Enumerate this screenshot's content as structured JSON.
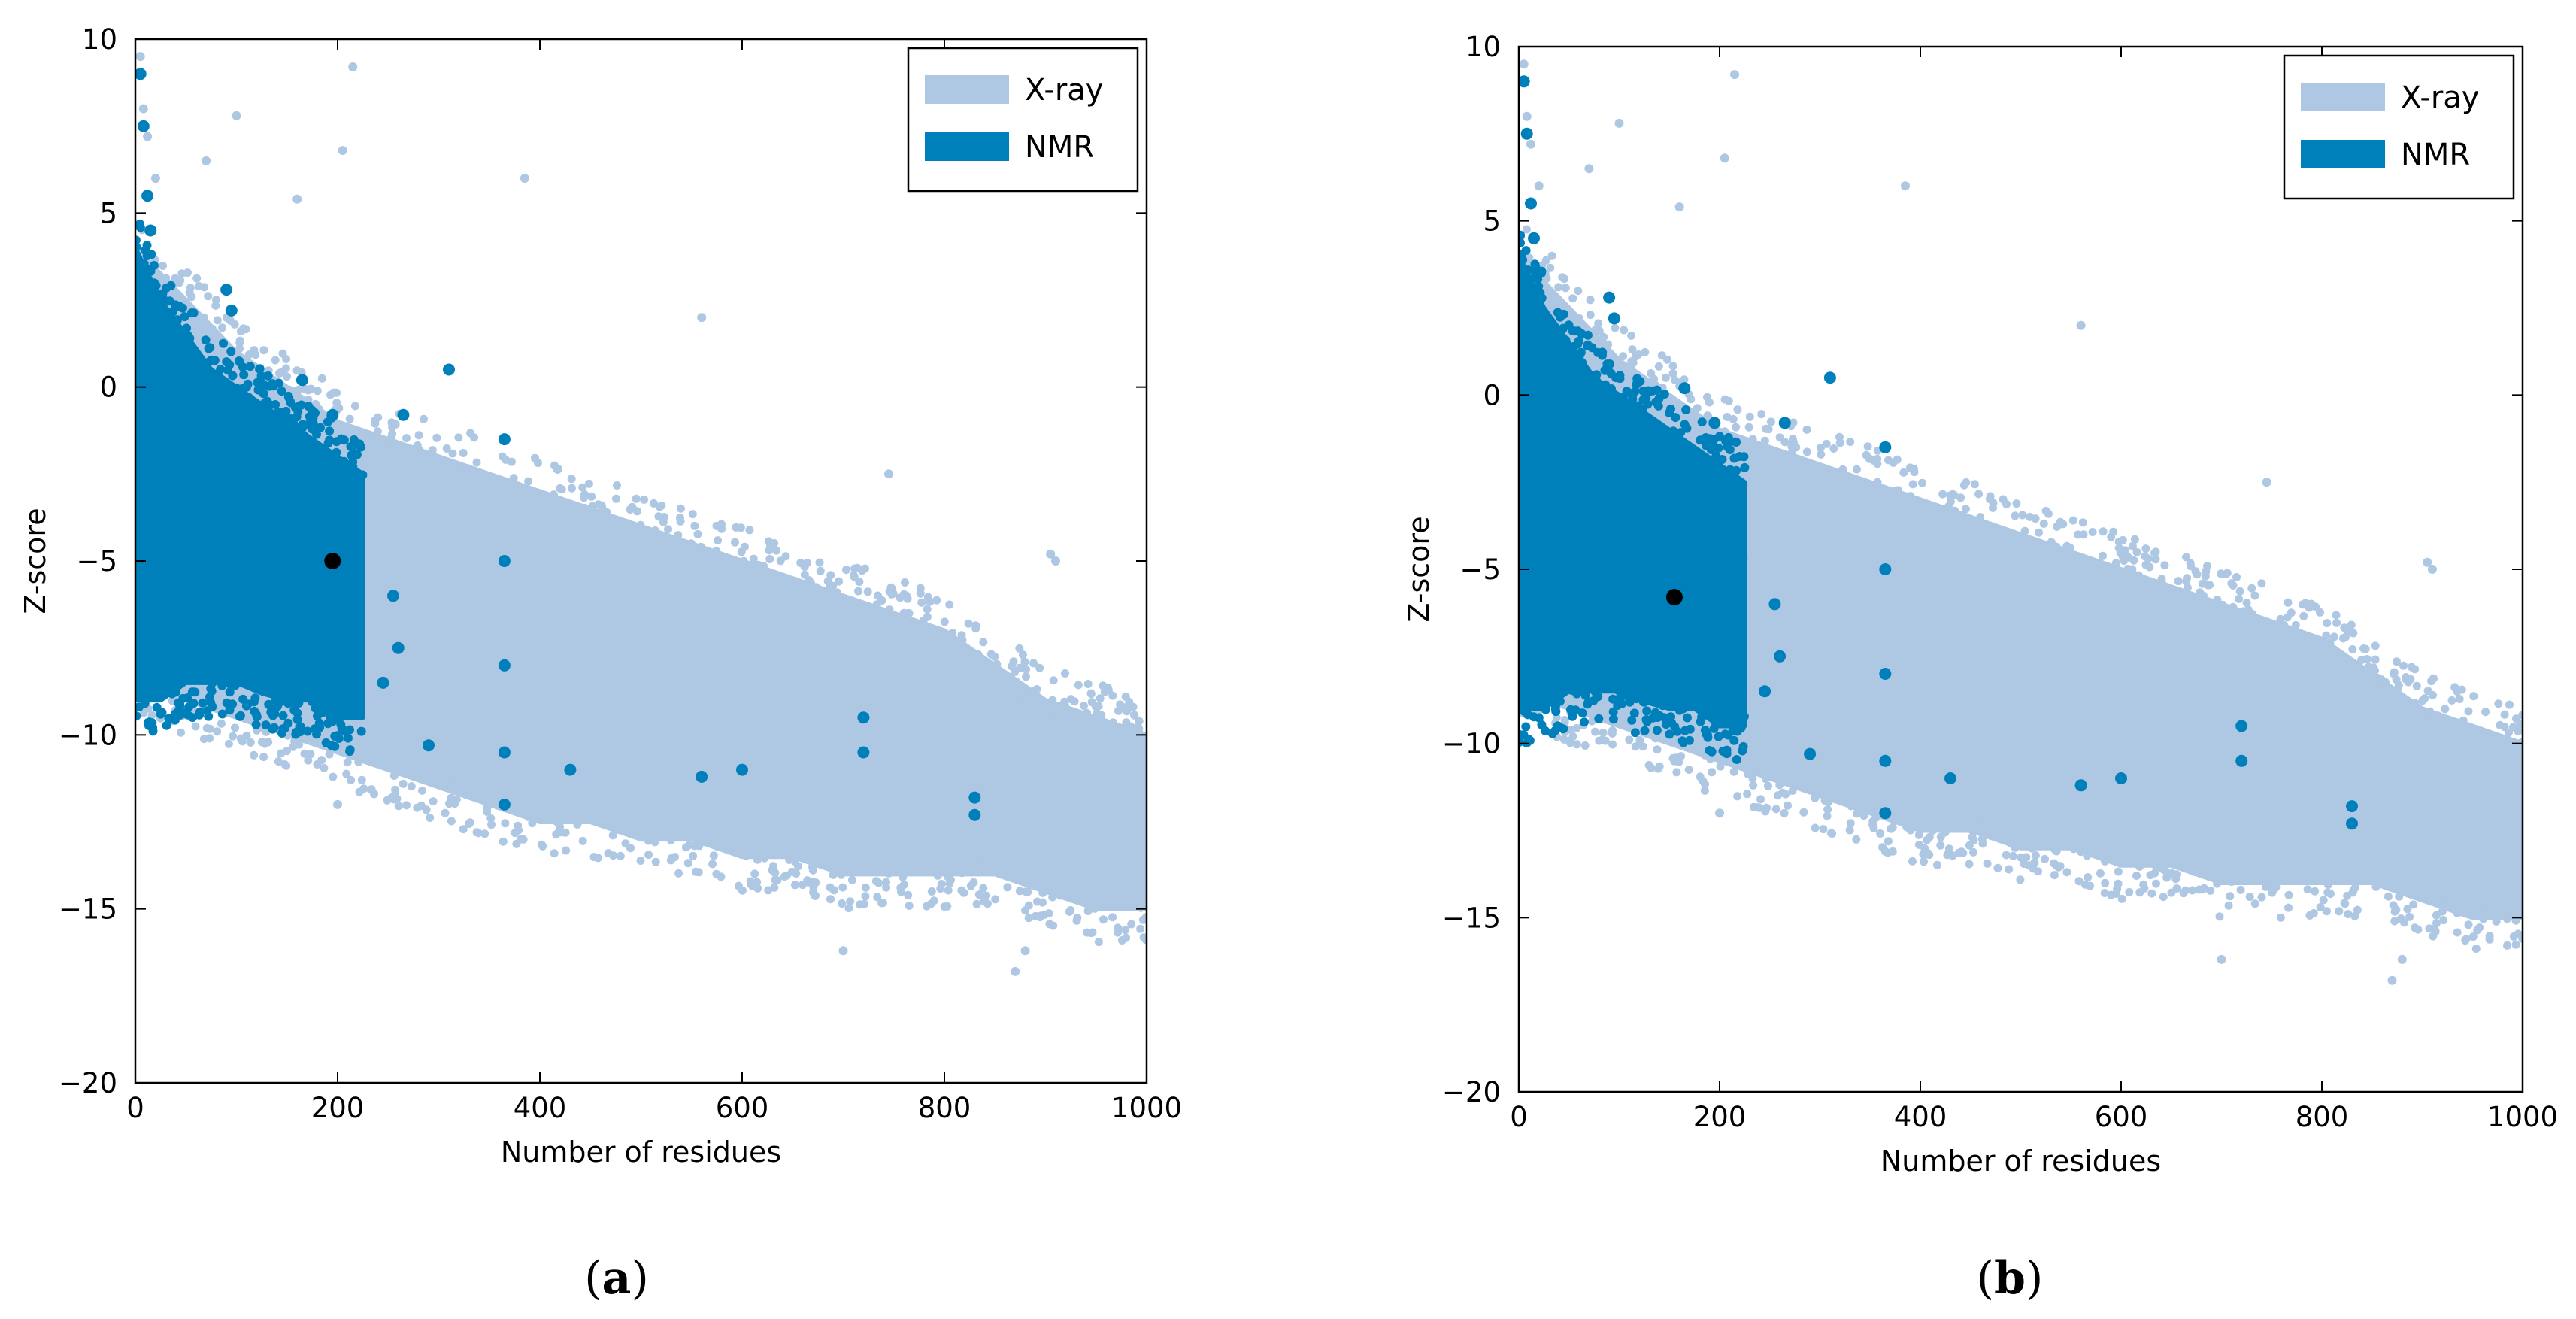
{
  "colors": {
    "xray": "#aec7e3",
    "nmr": "#0080bb",
    "marker": "#000000",
    "axis": "#000000",
    "background": "#ffffff"
  },
  "chart_data": [
    {
      "type": "scatter",
      "panel_label": "a",
      "caption_open": "(",
      "caption_close": ")",
      "xlabel": "Number of residues",
      "ylabel": "Z-score",
      "xlim": [
        0,
        1000
      ],
      "ylim": [
        -20,
        10
      ],
      "xticks": [
        0,
        200,
        400,
        600,
        800,
        1000
      ],
      "yticks": [
        10,
        5,
        0,
        -5,
        -10,
        -15,
        -20
      ],
      "ytick_labels": [
        "10",
        "5",
        "0",
        "−5",
        "−10",
        "−15",
        "−20"
      ],
      "grid": false,
      "legend_position": "top-right",
      "series": [
        {
          "name": "X-ray",
          "color": "#aec7e3",
          "envelope": {
            "x": [
              0,
              50,
              100,
              150,
              200,
              250,
              300,
              350,
              400,
              450,
              500,
              550,
              600,
              650,
              700,
              750,
              800,
              850,
              900,
              950,
              1000
            ],
            "upper": [
              4,
              2.5,
              1.0,
              0.0,
              -1.0,
              -1.5,
              -2.0,
              -2.5,
              -3.0,
              -3.5,
              -4.0,
              -4.5,
              -5.0,
              -5.5,
              -6.0,
              -6.5,
              -7.0,
              -8.0,
              -9.0,
              -9.5,
              -10.0
            ],
            "lower": [
              -8.5,
              -9.0,
              -9.5,
              -10.0,
              -10.5,
              -11.0,
              -11.5,
              -12.0,
              -12.5,
              -12.5,
              -13.0,
              -13.0,
              -13.5,
              -13.5,
              -14.0,
              -14.0,
              -14.0,
              -14.0,
              -14.5,
              -15.0,
              -15.0
            ]
          },
          "outliers": [
            [
              5,
              9.5
            ],
            [
              8,
              8.0
            ],
            [
              12,
              7.2
            ],
            [
              20,
              6.0
            ],
            [
              70,
              6.5
            ],
            [
              100,
              7.8
            ],
            [
              160,
              5.4
            ],
            [
              205,
              6.8
            ],
            [
              215,
              9.2
            ],
            [
              385,
              6.0
            ],
            [
              560,
              2.0
            ],
            [
              745,
              -2.5
            ],
            [
              905,
              -4.8
            ],
            [
              910,
              -5.0
            ],
            [
              700,
              -16.2
            ],
            [
              870,
              -16.8
            ],
            [
              880,
              -16.2
            ],
            [
              990,
              -14.5
            ],
            [
              200,
              -12.0
            ]
          ]
        },
        {
          "name": "NMR",
          "color": "#0080bb",
          "envelope": {
            "x": [
              0,
              25,
              50,
              75,
              100,
              125,
              150,
              175,
              200,
              225
            ],
            "upper": [
              4.0,
              2.5,
              1.5,
              0.5,
              0.0,
              -0.5,
              -1.0,
              -1.5,
              -2.0,
              -2.5
            ],
            "lower": [
              -9.0,
              -9.0,
              -8.5,
              -8.5,
              -8.5,
              -8.8,
              -9.0,
              -9.0,
              -9.5,
              -9.5
            ]
          },
          "outliers": [
            [
              5,
              9.0
            ],
            [
              8,
              7.5
            ],
            [
              12,
              5.5
            ],
            [
              15,
              4.5
            ],
            [
              90,
              2.8
            ],
            [
              95,
              2.2
            ],
            [
              165,
              0.2
            ],
            [
              195,
              -0.8
            ],
            [
              265,
              -0.8
            ],
            [
              310,
              0.5
            ],
            [
              365,
              -1.5
            ],
            [
              365,
              -5.0
            ],
            [
              365,
              -8.0
            ],
            [
              365,
              -10.5
            ],
            [
              365,
              -12.0
            ],
            [
              430,
              -11.0
            ],
            [
              560,
              -11.2
            ],
            [
              600,
              -11.0
            ],
            [
              720,
              -9.5
            ],
            [
              720,
              -10.5
            ],
            [
              830,
              -11.8
            ],
            [
              830,
              -12.3
            ],
            [
              255,
              -6.0
            ],
            [
              260,
              -7.5
            ],
            [
              245,
              -8.5
            ],
            [
              290,
              -10.3
            ]
          ]
        }
      ],
      "highlight_point": {
        "x": 195,
        "y": -5.0
      }
    },
    {
      "type": "scatter",
      "panel_label": "b",
      "caption_open": "(",
      "caption_close": ")",
      "xlabel": "Number of residues",
      "ylabel": "Z-score",
      "xlim": [
        0,
        1000
      ],
      "ylim": [
        -20,
        10
      ],
      "xticks": [
        0,
        200,
        400,
        600,
        800,
        1000
      ],
      "yticks": [
        10,
        5,
        0,
        -5,
        -10,
        -15,
        -20
      ],
      "ytick_labels": [
        "10",
        "5",
        "0",
        "−5",
        "−10",
        "−15",
        "−20"
      ],
      "grid": false,
      "legend_position": "top-right",
      "series": [
        {
          "name": "X-ray",
          "color": "#aec7e3",
          "envelope": {
            "x": [
              0,
              50,
              100,
              150,
              200,
              250,
              300,
              350,
              400,
              450,
              500,
              550,
              600,
              650,
              700,
              750,
              800,
              850,
              900,
              950,
              1000
            ],
            "upper": [
              4,
              2.5,
              1.0,
              0.0,
              -1.0,
              -1.5,
              -2.0,
              -2.5,
              -3.0,
              -3.5,
              -4.0,
              -4.5,
              -5.0,
              -5.5,
              -6.0,
              -6.5,
              -7.0,
              -8.0,
              -9.0,
              -9.5,
              -10.0
            ],
            "lower": [
              -8.5,
              -9.0,
              -9.5,
              -10.0,
              -10.5,
              -11.0,
              -11.5,
              -12.0,
              -12.5,
              -12.5,
              -13.0,
              -13.0,
              -13.5,
              -13.5,
              -14.0,
              -14.0,
              -14.0,
              -14.0,
              -14.5,
              -15.0,
              -15.0
            ]
          },
          "outliers": [
            [
              5,
              9.5
            ],
            [
              8,
              8.0
            ],
            [
              12,
              7.2
            ],
            [
              20,
              6.0
            ],
            [
              70,
              6.5
            ],
            [
              100,
              7.8
            ],
            [
              160,
              5.4
            ],
            [
              205,
              6.8
            ],
            [
              215,
              9.2
            ],
            [
              385,
              6.0
            ],
            [
              560,
              2.0
            ],
            [
              745,
              -2.5
            ],
            [
              905,
              -4.8
            ],
            [
              910,
              -5.0
            ],
            [
              700,
              -16.2
            ],
            [
              870,
              -16.8
            ],
            [
              880,
              -16.2
            ],
            [
              990,
              -14.5
            ],
            [
              200,
              -12.0
            ]
          ]
        },
        {
          "name": "NMR",
          "color": "#0080bb",
          "envelope": {
            "x": [
              0,
              25,
              50,
              75,
              100,
              125,
              150,
              175,
              200,
              225
            ],
            "upper": [
              4.0,
              2.5,
              1.5,
              0.5,
              0.0,
              -0.5,
              -1.0,
              -1.5,
              -2.0,
              -2.5
            ],
            "lower": [
              -9.0,
              -9.0,
              -8.5,
              -8.5,
              -8.5,
              -8.8,
              -9.0,
              -9.0,
              -9.5,
              -9.5
            ]
          },
          "outliers": [
            [
              5,
              9.0
            ],
            [
              8,
              7.5
            ],
            [
              12,
              5.5
            ],
            [
              15,
              4.5
            ],
            [
              90,
              2.8
            ],
            [
              95,
              2.2
            ],
            [
              165,
              0.2
            ],
            [
              195,
              -0.8
            ],
            [
              265,
              -0.8
            ],
            [
              310,
              0.5
            ],
            [
              365,
              -1.5
            ],
            [
              365,
              -5.0
            ],
            [
              365,
              -8.0
            ],
            [
              365,
              -10.5
            ],
            [
              365,
              -12.0
            ],
            [
              430,
              -11.0
            ],
            [
              560,
              -11.2
            ],
            [
              600,
              -11.0
            ],
            [
              720,
              -9.5
            ],
            [
              720,
              -10.5
            ],
            [
              830,
              -11.8
            ],
            [
              830,
              -12.3
            ],
            [
              255,
              -6.0
            ],
            [
              260,
              -7.5
            ],
            [
              245,
              -8.5
            ],
            [
              290,
              -10.3
            ]
          ]
        }
      ],
      "highlight_point": {
        "x": 155,
        "y": -5.8
      }
    }
  ]
}
